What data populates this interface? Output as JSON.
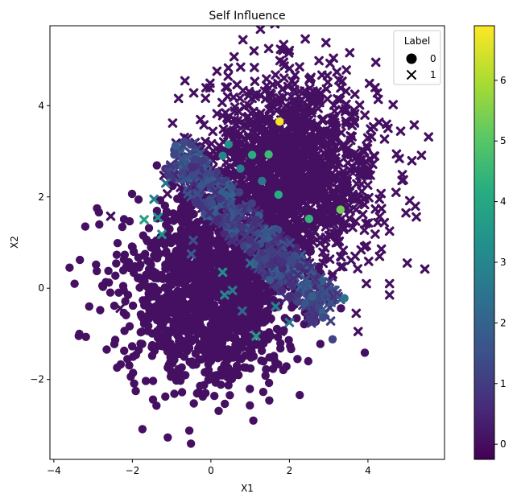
{
  "chart_data": {
    "type": "scatter",
    "title": "Self Influence",
    "xlabel": "X1",
    "ylabel": "X2",
    "xlim": [
      -4.1,
      5.95
    ],
    "ylim": [
      -3.75,
      5.75
    ],
    "xticks": [
      -4,
      -2,
      0,
      2,
      4
    ],
    "xtick_labels": [
      "−4",
      "−2",
      "0",
      "2",
      "4"
    ],
    "yticks": [
      -2,
      0,
      2,
      4
    ],
    "ytick_labels": [
      "−2",
      "0",
      "2",
      "4"
    ],
    "legend": {
      "title": "Label",
      "placement": "top-right",
      "entries": [
        {
          "label": "0",
          "marker": "circle"
        },
        {
          "label": "1",
          "marker": "x"
        }
      ]
    },
    "colorbar": {
      "colormap": "viridis",
      "range": [
        -0.25,
        6.9
      ],
      "ticks": [
        0,
        1,
        2,
        3,
        4,
        5,
        6
      ],
      "tick_labels": [
        "0",
        "1",
        "2",
        "3",
        "4",
        "5",
        "6"
      ]
    },
    "clusters": [
      {
        "label": 0,
        "center": [
          0.0,
          0.0
        ],
        "std": [
          1.05,
          1.05
        ],
        "count": 1600
      },
      {
        "label": 1,
        "center": [
          2.0,
          2.5
        ],
        "std": [
          1.1,
          1.05
        ],
        "count": 1600
      }
    ],
    "boundary_band": {
      "p1": [
        -1.0,
        3.0
      ],
      "p2": [
        3.0,
        -0.5
      ],
      "half_width": 0.5,
      "influence_range": [
        0.5,
        2.0
      ],
      "count": 450
    },
    "highlighted_points": [
      {
        "x": 1.75,
        "y": 3.65,
        "label": 0,
        "influence": 6.8
      },
      {
        "x": 3.3,
        "y": 1.72,
        "label": 0,
        "influence": 5.3
      },
      {
        "x": 1.47,
        "y": 2.93,
        "label": 0,
        "influence": 4.6
      },
      {
        "x": 2.5,
        "y": 1.52,
        "label": 0,
        "influence": 4.4
      },
      {
        "x": 1.05,
        "y": 2.92,
        "label": 0,
        "influence": 4.2
      },
      {
        "x": 1.72,
        "y": 2.05,
        "label": 0,
        "influence": 4.2
      },
      {
        "x": 0.45,
        "y": 3.15,
        "label": 0,
        "influence": 3.4
      },
      {
        "x": 0.3,
        "y": 2.9,
        "label": 0,
        "influence": 3.0
      },
      {
        "x": 0.75,
        "y": 2.62,
        "label": 0,
        "influence": 2.8
      },
      {
        "x": 1.3,
        "y": 2.35,
        "label": 0,
        "influence": 2.6
      },
      {
        "x": -0.9,
        "y": 3.12,
        "label": 0,
        "influence": 1.8
      },
      {
        "x": 3.4,
        "y": -0.22,
        "label": 0,
        "influence": 2.4
      },
      {
        "x": 3.1,
        "y": -1.12,
        "label": 0,
        "influence": 1.2
      },
      {
        "x": -1.7,
        "y": 1.5,
        "label": 1,
        "influence": 3.8
      },
      {
        "x": -1.35,
        "y": 1.55,
        "label": 1,
        "influence": 3.4
      },
      {
        "x": -1.25,
        "y": 1.18,
        "label": 1,
        "influence": 3.2
      },
      {
        "x": -1.45,
        "y": 1.95,
        "label": 1,
        "influence": 2.9
      },
      {
        "x": -1.15,
        "y": 2.3,
        "label": 1,
        "influence": 2.4
      },
      {
        "x": 0.3,
        "y": 0.35,
        "label": 1,
        "influence": 3.2
      },
      {
        "x": 0.35,
        "y": -0.15,
        "label": 1,
        "influence": 3.0
      },
      {
        "x": 0.55,
        "y": -0.05,
        "label": 1,
        "influence": 2.7
      },
      {
        "x": 1.15,
        "y": -1.05,
        "label": 1,
        "influence": 3.6
      },
      {
        "x": 1.65,
        "y": -0.4,
        "label": 1,
        "influence": 2.8
      },
      {
        "x": 2.0,
        "y": -0.75,
        "label": 1,
        "influence": 2.6
      },
      {
        "x": -0.5,
        "y": 0.75,
        "label": 1,
        "influence": 1.8
      },
      {
        "x": -0.45,
        "y": 1.05,
        "label": 1,
        "influence": 1.5
      },
      {
        "x": 3.05,
        "y": -0.72,
        "label": 1,
        "influence": 1.0
      },
      {
        "x": 3.3,
        "y": -0.25,
        "label": 1,
        "influence": 1.6
      },
      {
        "x": 1.0,
        "y": 0.55,
        "label": 1,
        "influence": 2.2
      },
      {
        "x": 0.8,
        "y": -0.5,
        "label": 1,
        "influence": 2.1
      }
    ],
    "outlier_points": [
      {
        "x": -3.6,
        "y": 0.45,
        "label": 0
      },
      {
        "x": -3.35,
        "y": -1.0,
        "label": 0
      },
      {
        "x": -3.1,
        "y": -0.4,
        "label": 0
      },
      {
        "x": -2.9,
        "y": 1.75,
        "label": 0
      },
      {
        "x": -3.2,
        "y": 1.35,
        "label": 0
      },
      {
        "x": -1.1,
        "y": -3.27,
        "label": 0
      },
      {
        "x": -0.55,
        "y": -3.12,
        "label": 0
      },
      {
        "x": 1.08,
        "y": -2.9,
        "label": 0
      },
      {
        "x": 5.45,
        "y": 0.42,
        "label": 1
      },
      {
        "x": 5.0,
        "y": 0.55,
        "label": 1
      },
      {
        "x": 4.2,
        "y": 4.95,
        "label": 1
      },
      {
        "x": 1.1,
        "y": 5.2,
        "label": 1
      },
      {
        "x": 4.55,
        "y": -0.15,
        "label": 1
      },
      {
        "x": 3.75,
        "y": -0.95,
        "label": 1
      },
      {
        "x": 3.7,
        "y": -0.55,
        "label": 1
      },
      {
        "x": 4.55,
        "y": 0.1,
        "label": 1
      },
      {
        "x": 3.45,
        "y": 4.78,
        "label": 1
      }
    ]
  },
  "colors": {
    "background": "#ffffff",
    "axis": "#000000"
  }
}
